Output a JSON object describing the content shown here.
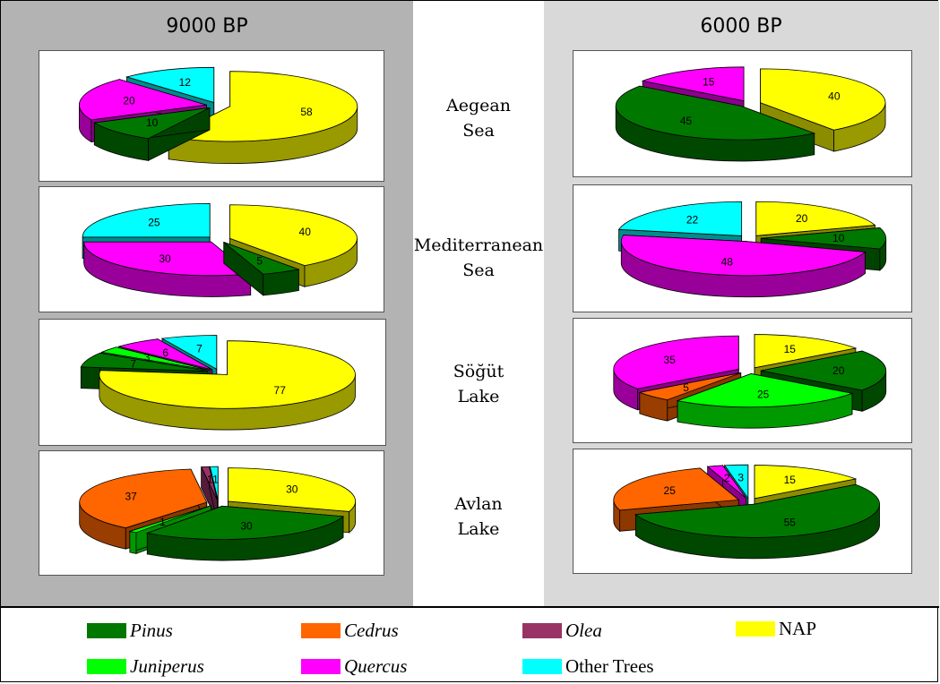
{
  "periods": {
    "left": "9000 BP",
    "right": "6000 BP"
  },
  "regions": [
    {
      "lines": [
        "Aegean",
        "Sea"
      ]
    },
    {
      "lines": [
        "Mediterranean",
        "Sea"
      ]
    },
    {
      "lines": [
        "Söğüt",
        "Lake"
      ]
    },
    {
      "lines": [
        "Avlan",
        "Lake"
      ]
    }
  ],
  "colors": {
    "Pinus": "#007800",
    "Cedrus": "#ff6600",
    "Olea": "#993366",
    "NAP": "#ffff00",
    "Juniperus": "#00ff00",
    "Quercus": "#ff00ff",
    "Other Trees": "#00ffff"
  },
  "legend": [
    {
      "key": "Pinus",
      "label": "Pinus",
      "italic": true
    },
    {
      "key": "Cedrus",
      "label": "Cedrus",
      "italic": true
    },
    {
      "key": "Olea",
      "label": "Olea",
      "italic": true
    },
    {
      "key": "NAP",
      "label": "NAP",
      "italic": false
    },
    {
      "key": "Juniperus",
      "label": "Juniperus",
      "italic": true
    },
    {
      "key": "Quercus",
      "label": "Quercus",
      "italic": true
    },
    {
      "key": "Other Trees",
      "label": "Other Trees",
      "italic": false
    }
  ],
  "chart_data": [
    {
      "type": "pie",
      "period": "9000 BP",
      "region": "Aegean Sea",
      "slices": [
        {
          "name": "NAP",
          "value": 58
        },
        {
          "name": "Pinus",
          "value": 10
        },
        {
          "name": "Quercus",
          "value": 20
        },
        {
          "name": "Other Trees",
          "value": 12
        }
      ]
    },
    {
      "type": "pie",
      "period": "6000 BP",
      "region": "Aegean Sea",
      "slices": [
        {
          "name": "NAP",
          "value": 40
        },
        {
          "name": "Pinus",
          "value": 45
        },
        {
          "name": "Quercus",
          "value": 15
        }
      ]
    },
    {
      "type": "pie",
      "period": "9000 BP",
      "region": "Mediterranean Sea",
      "slices": [
        {
          "name": "NAP",
          "value": 40
        },
        {
          "name": "Pinus",
          "value": 5
        },
        {
          "name": "Quercus",
          "value": 30
        },
        {
          "name": "Other Trees",
          "value": 25
        }
      ]
    },
    {
      "type": "pie",
      "period": "6000 BP",
      "region": "Mediterranean Sea",
      "slices": [
        {
          "name": "NAP",
          "value": 20
        },
        {
          "name": "Pinus",
          "value": 10
        },
        {
          "name": "Quercus",
          "value": 48
        },
        {
          "name": "Other Trees",
          "value": 22
        }
      ]
    },
    {
      "type": "pie",
      "period": "9000 BP",
      "region": "Söğüt Lake",
      "slices": [
        {
          "name": "NAP",
          "value": 77
        },
        {
          "name": "Pinus",
          "value": 7
        },
        {
          "name": "Juniperus",
          "value": 3
        },
        {
          "name": "Quercus",
          "value": 6
        },
        {
          "name": "Other Trees",
          "value": 7
        }
      ]
    },
    {
      "type": "pie",
      "period": "6000 BP",
      "region": "Söğüt Lake",
      "slices": [
        {
          "name": "NAP",
          "value": 15
        },
        {
          "name": "Pinus",
          "value": 20
        },
        {
          "name": "Juniperus",
          "value": 25
        },
        {
          "name": "Cedrus",
          "value": 5
        },
        {
          "name": "Quercus",
          "value": 35
        }
      ]
    },
    {
      "type": "pie",
      "period": "9000 BP",
      "region": "Avlan Lake",
      "slices": [
        {
          "name": "NAP",
          "value": 30
        },
        {
          "name": "Pinus",
          "value": 30
        },
        {
          "name": "Juniperus",
          "value": 1
        },
        {
          "name": "Cedrus",
          "value": 37
        },
        {
          "name": "Olea",
          "value": 1
        },
        {
          "name": "Other Trees",
          "value": 1
        }
      ]
    },
    {
      "type": "pie",
      "period": "6000 BP",
      "region": "Avlan Lake",
      "slices": [
        {
          "name": "NAP",
          "value": 15
        },
        {
          "name": "Pinus",
          "value": 55
        },
        {
          "name": "Cedrus",
          "value": 25
        },
        {
          "name": "Quercus",
          "value": 2
        },
        {
          "name": "Other Trees",
          "value": 3
        }
      ]
    }
  ]
}
